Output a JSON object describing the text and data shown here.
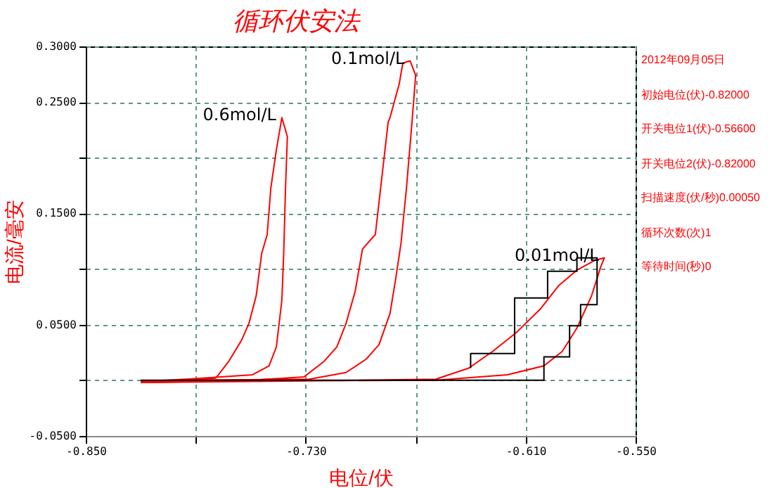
{
  "chart_data": {
    "type": "line",
    "title": "循环伏安法",
    "xlabel": "电位/伏",
    "ylabel": "电流/毫安",
    "xlim": [
      -0.85,
      -0.55
    ],
    "xticks": [
      {
        "value": -0.85,
        "label": "-0.850"
      },
      {
        "value": -0.79,
        "label": null
      },
      {
        "value": -0.73,
        "label": "-0.730"
      },
      {
        "value": -0.67,
        "label": null
      },
      {
        "value": -0.61,
        "label": "-0.610"
      },
      {
        "value": -0.55,
        "label": "-0.550"
      }
    ],
    "ylim": [
      -0.05,
      0.3
    ],
    "yticks": [
      {
        "value": -0.05,
        "label": "-0.0500"
      },
      {
        "value": 0,
        "label": null
      },
      {
        "value": 0.05,
        "label": "0.0500"
      },
      {
        "value": 0.1,
        "label": null
      },
      {
        "value": 0.15,
        "label": "0.1500"
      },
      {
        "value": 0.2,
        "label": null
      },
      {
        "value": 0.25,
        "label": "0.2500"
      },
      {
        "value": 0.3,
        "label": "0.3000"
      }
    ],
    "grid": true,
    "series": [
      {
        "name": "0.6mol/L",
        "color": "#ff0000",
        "x": [
          -0.82,
          -0.795,
          -0.779,
          -0.772,
          -0.765,
          -0.761,
          -0.757,
          -0.754,
          -0.751,
          -0.749,
          -0.746,
          -0.743,
          -0.74,
          -0.741,
          -0.742,
          -0.742,
          -0.743,
          -0.746,
          -0.75,
          -0.759,
          -0.795,
          -0.82
        ],
        "values": [
          -0.002,
          0.0,
          0.002,
          0.017,
          0.036,
          0.051,
          0.076,
          0.114,
          0.131,
          0.173,
          0.207,
          0.236,
          0.219,
          0.173,
          0.114,
          0.114,
          0.072,
          0.03,
          0.013,
          0.005,
          0.001,
          -0.001
        ]
      },
      {
        "name": "0.1mol/L",
        "color": "#ff0000",
        "x": [
          -0.82,
          -0.76,
          -0.731,
          -0.72,
          -0.713,
          -0.708,
          -0.703,
          -0.699,
          -0.692,
          -0.685,
          -0.684,
          -0.679,
          -0.677,
          -0.673,
          -0.67,
          -0.672,
          -0.675,
          -0.678,
          -0.681,
          -0.684,
          -0.69,
          -0.697,
          -0.708,
          -0.728,
          -0.795,
          -0.82
        ],
        "values": [
          -0.002,
          0.0,
          0.003,
          0.017,
          0.03,
          0.051,
          0.08,
          0.118,
          0.131,
          0.232,
          0.236,
          0.266,
          0.285,
          0.287,
          0.274,
          0.232,
          0.173,
          0.123,
          0.09,
          0.06,
          0.032,
          0.019,
          0.007,
          0.001,
          0.0,
          -0.001
        ]
      },
      {
        "name": "0.01mol/L",
        "color": "#ff0000",
        "x": [
          -0.82,
          -0.7,
          -0.659,
          -0.641,
          -0.628,
          -0.615,
          -0.602,
          -0.592,
          -0.582,
          -0.572,
          -0.567,
          -0.569,
          -0.574,
          -0.582,
          -0.59,
          -0.6,
          -0.62,
          -0.659,
          -0.82
        ],
        "values": [
          -0.002,
          0.0,
          0.001,
          0.011,
          0.026,
          0.043,
          0.064,
          0.085,
          0.099,
          0.108,
          0.11,
          0.102,
          0.076,
          0.047,
          0.026,
          0.013,
          0.005,
          0.0,
          -0.001
        ]
      },
      {
        "color": "#000000",
        "x": [
          -0.82,
          -0.6,
          -0.6,
          -0.586,
          -0.586,
          -0.58,
          -0.58,
          -0.571,
          -0.571,
          -0.582,
          -0.582,
          -0.598,
          -0.598,
          -0.616,
          -0.616,
          -0.64,
          -0.64
        ],
        "values": [
          0.0,
          0.0,
          0.021,
          0.021,
          0.049,
          0.049,
          0.068,
          0.068,
          0.11,
          0.11,
          0.098,
          0.098,
          0.074,
          0.074,
          0.024,
          0.024,
          0.011
        ]
      }
    ],
    "annotations": [
      "2012年09月05日",
      "初始电位(伏)-0.82000",
      "开关电位1(伏)-0.56600",
      "开关电位2(伏)-0.82000",
      "扫描速度(伏/秒)0.00050",
      "循环次数(次)1",
      "等待时间(秒)0"
    ]
  }
}
